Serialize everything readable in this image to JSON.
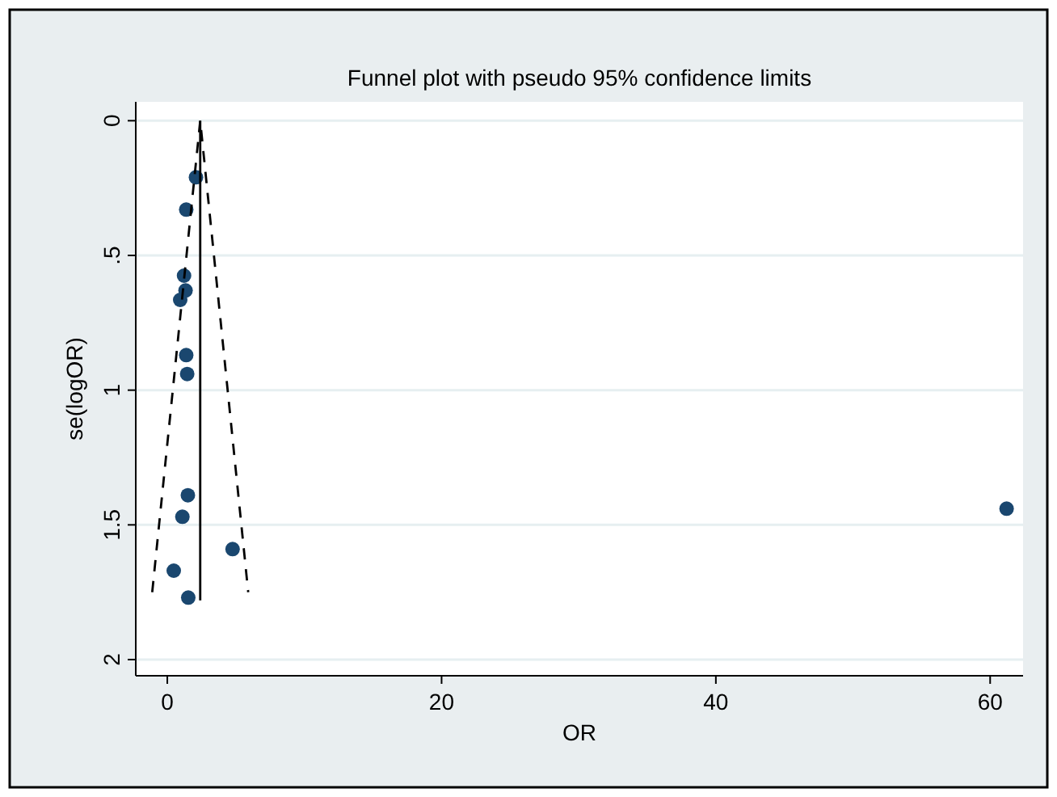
{
  "chart_data": {
    "type": "scatter",
    "title": "Funnel plot with pseudo 95% confidence limits",
    "xlabel": "OR",
    "ylabel": "se(logOR)",
    "xlim": [
      -2.3,
      62.4
    ],
    "xticks": [
      0,
      20,
      40,
      60
    ],
    "ylim": [
      2.06,
      -0.07
    ],
    "yticks": [
      0,
      {
        "value": 0.5,
        "label": ".5"
      },
      1,
      1.5,
      2
    ],
    "grid": "y",
    "marker": "circle",
    "series": [
      {
        "color": "#1a476f",
        "x": [
          2.09,
          1.38,
          1.22,
          1.33,
          0.94,
          1.38,
          1.45,
          1.5,
          1.1,
          4.76,
          0.47,
          1.53,
          61.2
        ],
        "values": [
          0.21,
          0.33,
          0.575,
          0.63,
          0.665,
          0.87,
          0.94,
          1.39,
          1.47,
          1.59,
          1.67,
          1.77,
          1.44
        ]
      },
      {
        "type": "line",
        "color": "#000000",
        "line_style": "dashed",
        "marker": "none",
        "x": [
          -1.1,
          2.4,
          5.9
        ],
        "values": [
          1.75,
          0,
          1.75
        ]
      },
      {
        "type": "line",
        "color": "#000000",
        "line_style": "solid",
        "marker": "none",
        "x": [
          2.4,
          2.4
        ],
        "values": [
          0,
          1.78
        ]
      }
    ]
  }
}
